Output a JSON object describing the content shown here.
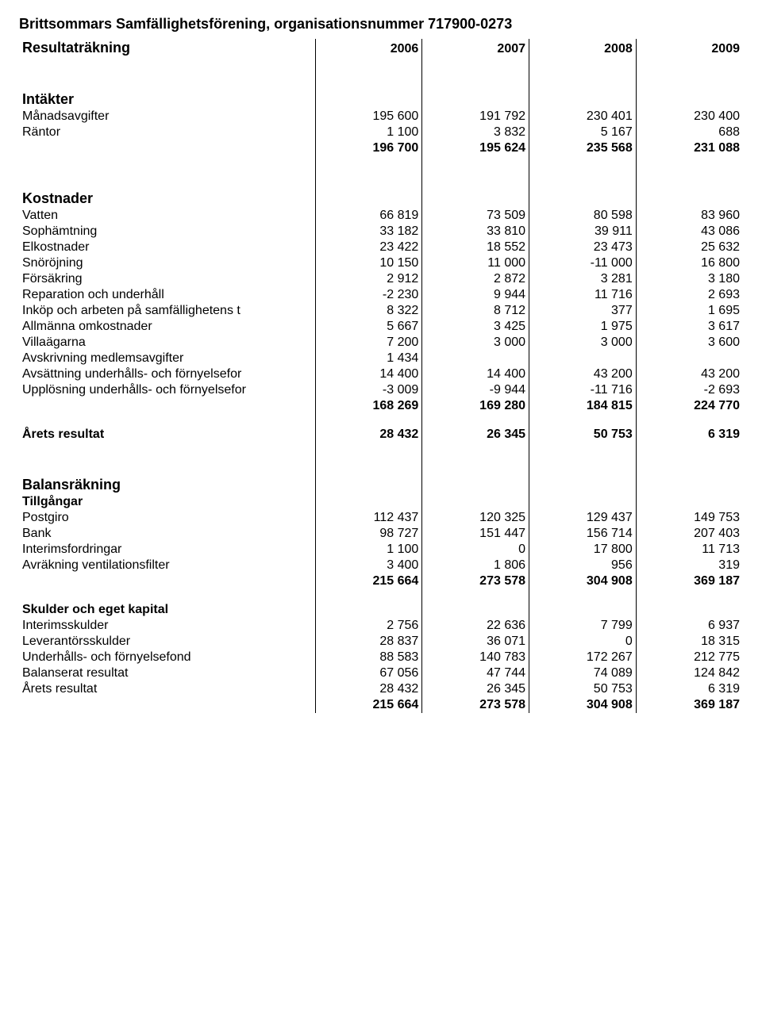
{
  "title": "Brittsommars Samfällighetsförening, organisationsnummer 717900-0273",
  "years": [
    "2006",
    "2007",
    "2008",
    "2009"
  ],
  "resultat_heading": "Resultaträkning",
  "intakter": {
    "heading": "Intäkter",
    "rows": [
      {
        "label": "Månadsavgifter",
        "v": [
          "195 600",
          "191 792",
          "230 401",
          "230 400"
        ]
      },
      {
        "label": "Räntor",
        "v": [
          "1 100",
          "3 832",
          "5 167",
          "688"
        ]
      }
    ],
    "total": [
      "196 700",
      "195 624",
      "235 568",
      "231 088"
    ]
  },
  "kostnader": {
    "heading": "Kostnader",
    "rows": [
      {
        "label": "Vatten",
        "v": [
          "66 819",
          "73 509",
          "80 598",
          "83 960"
        ]
      },
      {
        "label": "Sophämtning",
        "v": [
          "33 182",
          "33 810",
          "39 911",
          "43 086"
        ]
      },
      {
        "label": "Elkostnader",
        "v": [
          "23 422",
          "18 552",
          "23 473",
          "25 632"
        ]
      },
      {
        "label": "Snöröjning",
        "v": [
          "10 150",
          "11 000",
          "-11 000",
          "16 800"
        ]
      },
      {
        "label": "Försäkring",
        "v": [
          "2 912",
          "2 872",
          "3 281",
          "3 180"
        ]
      },
      {
        "label": "Reparation och underhåll",
        "v": [
          "-2 230",
          "9 944",
          "11 716",
          "2 693"
        ]
      },
      {
        "label": "Inköp och arbeten på samfällighetens t",
        "v": [
          "8 322",
          "8 712",
          "377",
          "1 695"
        ]
      },
      {
        "label": "Allmänna omkostnader",
        "v": [
          "5 667",
          "3 425",
          "1 975",
          "3 617"
        ]
      },
      {
        "label": "Villaägarna",
        "v": [
          "7 200",
          "3 000",
          "3 000",
          "3 600"
        ]
      },
      {
        "label": "Avskrivning medlemsavgifter",
        "v": [
          "1 434",
          "",
          "",
          ""
        ]
      },
      {
        "label": "Avsättning underhålls- och förnyelsefor",
        "v": [
          "14 400",
          "14 400",
          "43 200",
          "43 200"
        ]
      },
      {
        "label": "Upplösning underhålls- och förnyelsefor",
        "v": [
          "-3 009",
          "-9 944",
          "-11 716",
          "-2 693"
        ]
      }
    ],
    "total": [
      "168 269",
      "169 280",
      "184 815",
      "224 770"
    ]
  },
  "arets_resultat": {
    "label": "Årets resultat",
    "v": [
      "28 432",
      "26 345",
      "50 753",
      "6 319"
    ]
  },
  "balans_heading": "Balansräkning",
  "tillgangar": {
    "heading": "Tillgångar",
    "rows": [
      {
        "label": "Postgiro",
        "v": [
          "112 437",
          "120 325",
          "129 437",
          "149 753"
        ]
      },
      {
        "label": "Bank",
        "v": [
          "98 727",
          "151 447",
          "156 714",
          "207 403"
        ]
      },
      {
        "label": "Interimsfordringar",
        "v": [
          "1 100",
          "0",
          "17 800",
          "11 713"
        ]
      },
      {
        "label": "Avräkning ventilationsfilter",
        "v": [
          "3 400",
          "1 806",
          "956",
          "319"
        ]
      }
    ],
    "total": [
      "215 664",
      "273 578",
      "304 908",
      "369 187"
    ]
  },
  "skulder": {
    "heading": "Skulder och eget kapital",
    "rows": [
      {
        "label": "Interimsskulder",
        "v": [
          "2 756",
          "22 636",
          "7 799",
          "6 937"
        ]
      },
      {
        "label": "Leverantörsskulder",
        "v": [
          "28 837",
          "36 071",
          "0",
          "18 315"
        ]
      },
      {
        "label": "Underhålls- och förnyelsefond",
        "v": [
          "88 583",
          "140 783",
          "172 267",
          "212 775"
        ]
      },
      {
        "label": "Balanserat resultat",
        "v": [
          "67 056",
          "47 744",
          "74 089",
          "124 842"
        ]
      },
      {
        "label": "Årets resultat",
        "v": [
          "28 432",
          "26 345",
          "50 753",
          "6 319"
        ]
      }
    ],
    "total": [
      "215 664",
      "273 578",
      "304 908",
      "369 187"
    ]
  }
}
